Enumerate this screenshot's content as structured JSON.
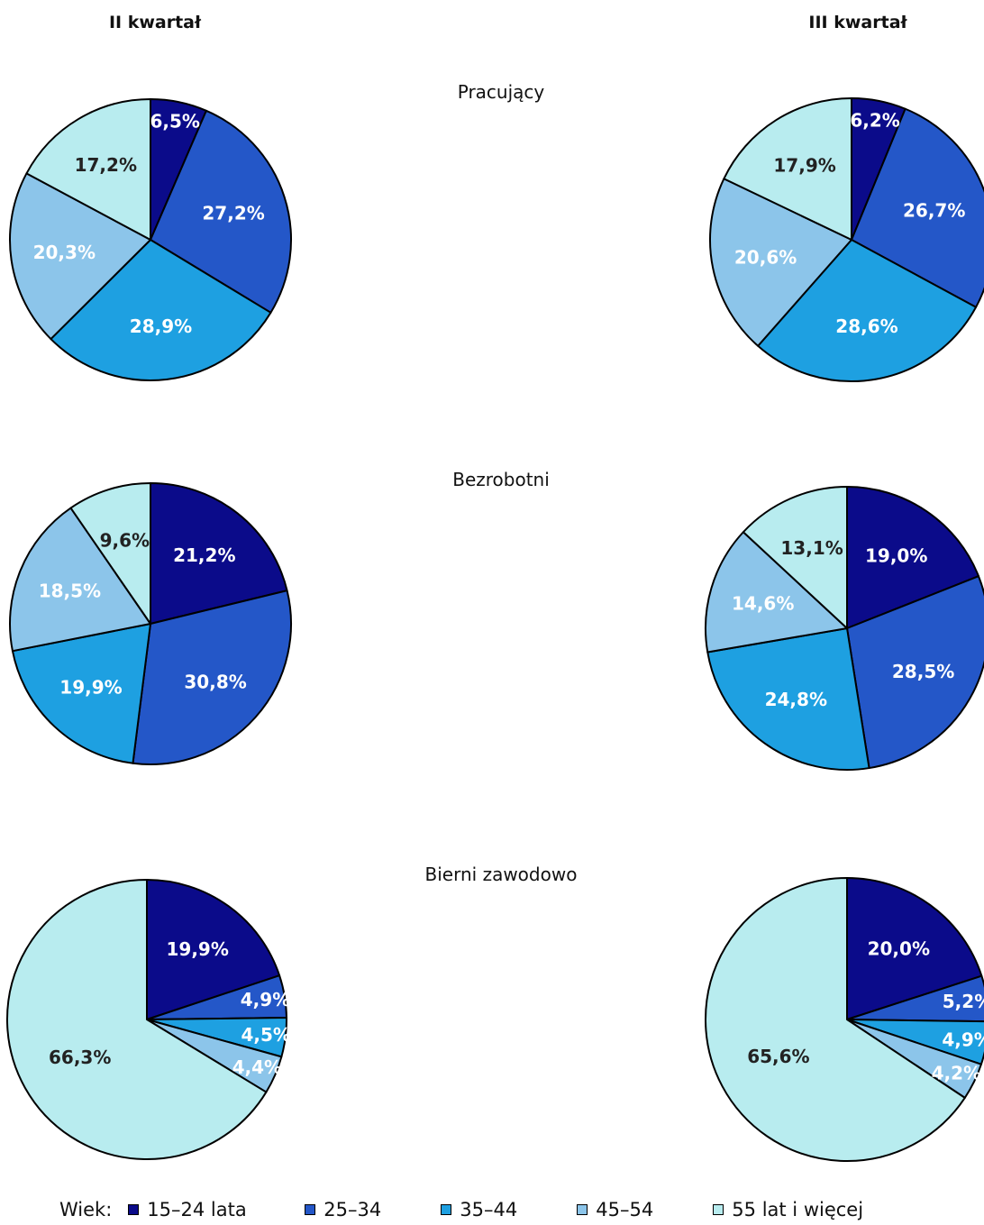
{
  "chart_data": [
    {
      "type": "pie",
      "title": "Pracujący",
      "period": "II kwartał",
      "categories": [
        "15–24 lata",
        "25–34",
        "35–44",
        "45–54",
        "55 lat i więcej"
      ],
      "values": [
        6.5,
        27.2,
        28.9,
        20.3,
        17.2
      ],
      "labels": [
        "6,5%",
        "27,2%",
        "28,9%",
        "20,3%",
        "17,2%"
      ]
    },
    {
      "type": "pie",
      "title": "Pracujący",
      "period": "III kwartał",
      "categories": [
        "15–24 lata",
        "25–34",
        "35–44",
        "45–54",
        "55 lat i więcej"
      ],
      "values": [
        6.2,
        26.7,
        28.6,
        20.6,
        17.9
      ],
      "labels": [
        "6,2%",
        "26,7%",
        "28,6%",
        "20,6%",
        "17,9%"
      ]
    },
    {
      "type": "pie",
      "title": "Bezrobotni",
      "period": "II kwartał",
      "categories": [
        "15–24 lata",
        "25–34",
        "35–44",
        "45–54",
        "55 lat i więcej"
      ],
      "values": [
        21.2,
        30.8,
        19.9,
        18.5,
        9.6
      ],
      "labels": [
        "21,2%",
        "30,8%",
        "19,9%",
        "18,5%",
        "9,6%"
      ]
    },
    {
      "type": "pie",
      "title": "Bezrobotni",
      "period": "III kwartał",
      "categories": [
        "15–24 lata",
        "25–34",
        "35–44",
        "45–54",
        "55 lat i więcej"
      ],
      "values": [
        19.0,
        28.5,
        24.8,
        14.6,
        13.1
      ],
      "labels": [
        "19,0%",
        "28,5%",
        "24,8%",
        "14,6%",
        "13,1%"
      ]
    },
    {
      "type": "pie",
      "title": "Bierni zawodowo",
      "period": "II kwartał",
      "categories": [
        "15–24 lata",
        "25–34",
        "35–44",
        "45–54",
        "55 lat i więcej"
      ],
      "values": [
        19.9,
        4.9,
        4.5,
        4.4,
        66.3
      ],
      "labels": [
        "19,9%",
        "4,9%",
        "4,5%",
        "4,4%",
        "66,3%"
      ]
    },
    {
      "type": "pie",
      "title": "Bierni zawodowo",
      "period": "III kwartał",
      "categories": [
        "15–24 lata",
        "25–34",
        "35–44",
        "45–54",
        "55 lat i więcej"
      ],
      "values": [
        20.0,
        5.2,
        4.9,
        4.2,
        65.6
      ],
      "labels": [
        "20,0%",
        "5,2%",
        "4,9%",
        "4,2%",
        "65,6%"
      ]
    }
  ],
  "headers": {
    "col_left": "II kwartał",
    "col_right": "III kwartał",
    "row1": "Pracujący",
    "row2": "Bezrobotni",
    "row3": "Bierni zawodowo"
  },
  "legend": {
    "title": "Wiek:",
    "items": [
      {
        "label": "15–24 lata",
        "color": "#0b0b8a"
      },
      {
        "label": "25–34",
        "color": "#2457c8"
      },
      {
        "label": "35–44",
        "color": "#1ea0e1"
      },
      {
        "label": "45–54",
        "color": "#8cc5ea"
      },
      {
        "label": "55 lat i więcej",
        "color": "#b8ecef"
      }
    ]
  },
  "label_colors": [
    "#ffffff",
    "#ffffff",
    "#ffffff",
    "#ffffff",
    "#222222"
  ]
}
